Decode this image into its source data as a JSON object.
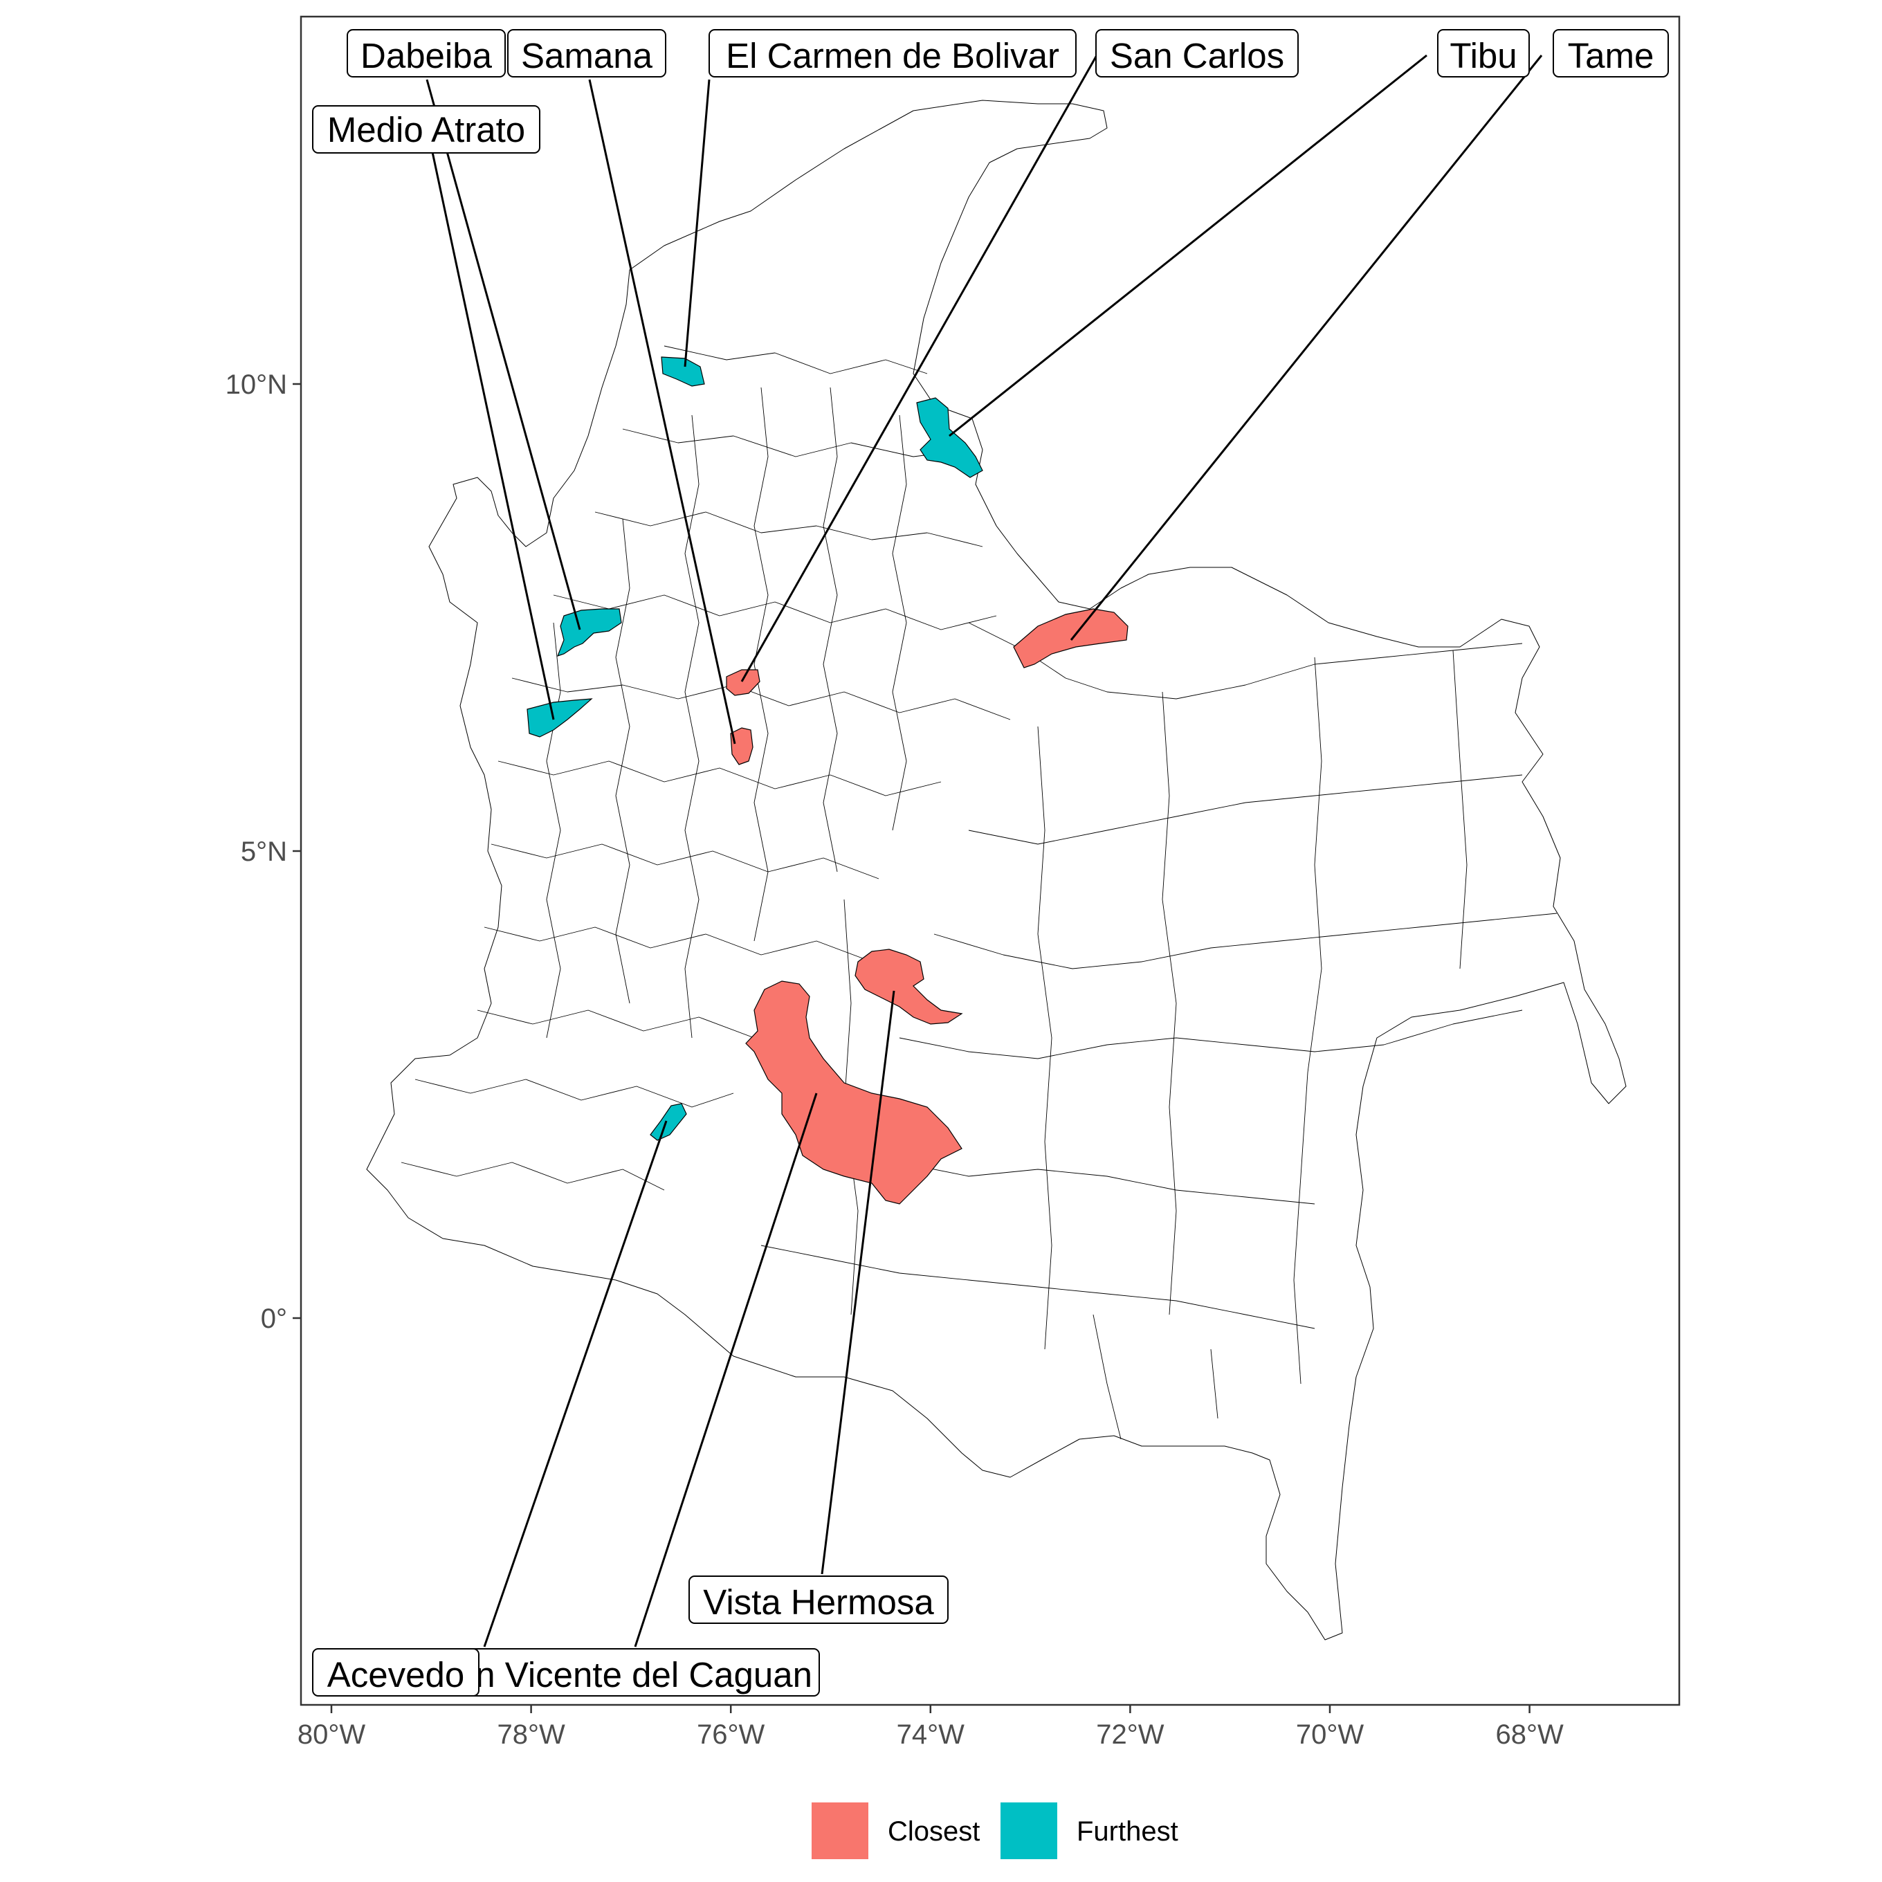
{
  "colors": {
    "closest": "#F8766D",
    "furthest": "#00BFC4",
    "boundary": "#000000",
    "panel_border": "#333333",
    "tick_text": "#4d4d4d"
  },
  "axes": {
    "x_ticks": [
      {
        "value": -80,
        "label": "80°W"
      },
      {
        "value": -78,
        "label": "78°W"
      },
      {
        "value": -76,
        "label": "76°W"
      },
      {
        "value": -74,
        "label": "74°W"
      },
      {
        "value": -72,
        "label": "72°W"
      },
      {
        "value": -70,
        "label": "70°W"
      },
      {
        "value": -68,
        "label": "68°W"
      }
    ],
    "y_ticks": [
      {
        "value": 10,
        "label": "10°N"
      },
      {
        "value": 5,
        "label": "5°N"
      },
      {
        "value": 0,
        "label": "0°"
      }
    ],
    "xlim": [
      -80.3,
      -66.5
    ],
    "ylim": [
      -4.3,
      13.9
    ]
  },
  "legend": {
    "position": "bottom",
    "items": [
      {
        "key": "closest",
        "label": "Closest"
      },
      {
        "key": "furthest",
        "label": "Furthest"
      }
    ]
  },
  "map_data": {
    "type": "choropleth",
    "region": "Colombia municipalities",
    "categories": [
      "Closest",
      "Furthest"
    ],
    "highlighted": [
      {
        "name": "Dabeiba",
        "group": "Furthest",
        "lon": -77.5,
        "lat": 7.1
      },
      {
        "name": "Samana",
        "group": "Closest",
        "lon": -75.0,
        "lat": 5.6
      },
      {
        "name": "El Carmen de Bolivar",
        "group": "Furthest",
        "lon": -75.2,
        "lat": 9.6
      },
      {
        "name": "San Carlos",
        "group": "Closest",
        "lon": -75.0,
        "lat": 6.3
      },
      {
        "name": "Tibu",
        "group": "Furthest",
        "lon": -72.8,
        "lat": 8.9
      },
      {
        "name": "Tame",
        "group": "Closest",
        "lon": -71.8,
        "lat": 6.4
      },
      {
        "name": "Medio Atrato",
        "group": "Furthest",
        "lon": -77.9,
        "lat": 6.0
      },
      {
        "name": "Vista Hermosa",
        "group": "Closest",
        "lon": -73.9,
        "lat": 3.2
      },
      {
        "name": "San Vicente del Caguan",
        "group": "Closest",
        "lon": -74.6,
        "lat": 2.0
      },
      {
        "name": "Acevedo",
        "group": "Furthest",
        "lon": -75.9,
        "lat": 1.8
      }
    ]
  }
}
